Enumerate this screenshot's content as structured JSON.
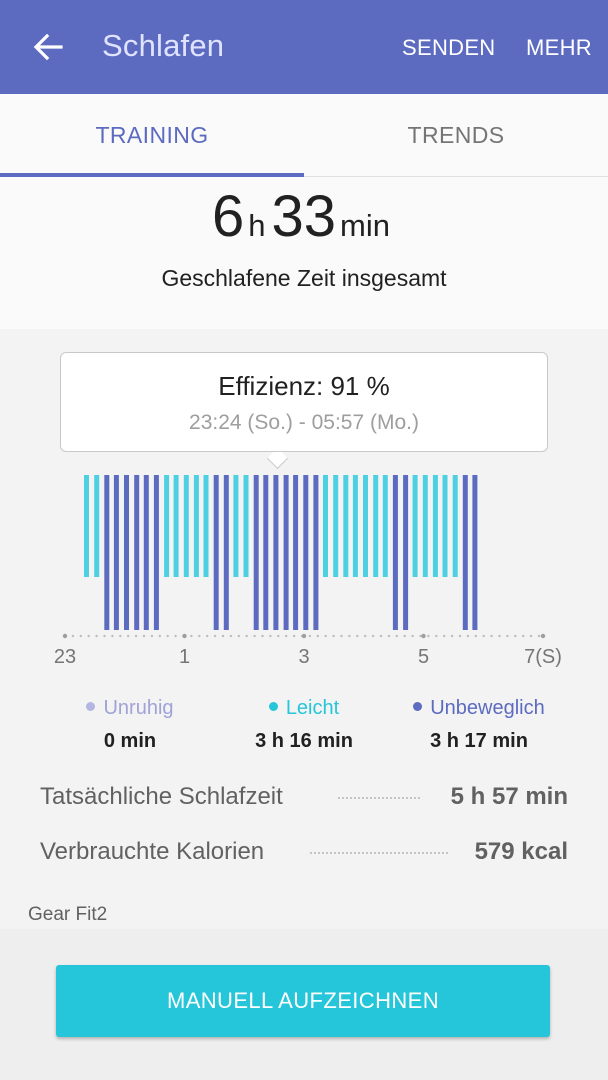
{
  "appbar": {
    "title": "Schlafen",
    "back_icon": "arrow-left-icon",
    "actions": [
      "SENDEN",
      "MEHR"
    ]
  },
  "tabs": [
    {
      "label": "TRAINING",
      "selected": true
    },
    {
      "label": "TRENDS",
      "selected": false
    }
  ],
  "total": {
    "hours": "6",
    "hours_unit": "h",
    "minutes": "33",
    "minutes_unit": "min",
    "caption": "Geschlafene Zeit insgesamt"
  },
  "tooltip": {
    "title": "Effizienz: 91 %",
    "range": "23:24 (So.) - 05:57 (Mo.)"
  },
  "chart_data": {
    "type": "bar",
    "x_ticks": [
      "23",
      "1",
      "3",
      "5",
      "7(S)"
    ],
    "x_tick_hours": [
      23,
      25,
      27,
      29,
      31
    ],
    "state_levels": {
      "Leicht": 1,
      "Unbeweglich": 2
    },
    "samples": [
      {
        "x": 23.36,
        "state": "Leicht"
      },
      {
        "x": 23.53,
        "state": "Leicht"
      },
      {
        "x": 23.7,
        "state": "Unbeweglich"
      },
      {
        "x": 23.86,
        "state": "Unbeweglich"
      },
      {
        "x": 24.03,
        "state": "Unbeweglich"
      },
      {
        "x": 24.2,
        "state": "Unbeweglich"
      },
      {
        "x": 24.36,
        "state": "Unbeweglich"
      },
      {
        "x": 24.53,
        "state": "Unbeweglich"
      },
      {
        "x": 24.7,
        "state": "Leicht"
      },
      {
        "x": 24.86,
        "state": "Leicht"
      },
      {
        "x": 25.03,
        "state": "Leicht"
      },
      {
        "x": 25.2,
        "state": "Leicht"
      },
      {
        "x": 25.36,
        "state": "Leicht"
      },
      {
        "x": 25.53,
        "state": "Unbeweglich"
      },
      {
        "x": 25.7,
        "state": "Unbeweglich"
      },
      {
        "x": 25.86,
        "state": "Leicht"
      },
      {
        "x": 26.03,
        "state": "Leicht"
      },
      {
        "x": 26.2,
        "state": "Unbeweglich"
      },
      {
        "x": 26.36,
        "state": "Unbeweglich"
      },
      {
        "x": 26.53,
        "state": "Unbeweglich"
      },
      {
        "x": 26.7,
        "state": "Unbeweglich"
      },
      {
        "x": 26.86,
        "state": "Unbeweglich"
      },
      {
        "x": 27.03,
        "state": "Unbeweglich"
      },
      {
        "x": 27.2,
        "state": "Unbeweglich"
      },
      {
        "x": 27.36,
        "state": "Leicht"
      },
      {
        "x": 27.53,
        "state": "Leicht"
      },
      {
        "x": 27.7,
        "state": "Leicht"
      },
      {
        "x": 27.86,
        "state": "Leicht"
      },
      {
        "x": 28.03,
        "state": "Leicht"
      },
      {
        "x": 28.2,
        "state": "Leicht"
      },
      {
        "x": 28.36,
        "state": "Leicht"
      },
      {
        "x": 28.53,
        "state": "Unbeweglich"
      },
      {
        "x": 28.7,
        "state": "Unbeweglich"
      },
      {
        "x": 28.86,
        "state": "Leicht"
      },
      {
        "x": 29.03,
        "state": "Leicht"
      },
      {
        "x": 29.2,
        "state": "Leicht"
      },
      {
        "x": 29.36,
        "state": "Leicht"
      },
      {
        "x": 29.53,
        "state": "Leicht"
      },
      {
        "x": 29.7,
        "state": "Unbeweglich"
      },
      {
        "x": 29.86,
        "state": "Unbeweglich"
      }
    ],
    "colors": {
      "Leicht": "#4dd0e1",
      "Unbeweglich": "#5c6bc0"
    }
  },
  "legend": [
    {
      "label": "Unruhig",
      "value": "0 min",
      "color": "#b3b6e0",
      "label_color": "#9fa3d6"
    },
    {
      "label": "Leicht",
      "value": "3 h 16 min",
      "color": "#26c6da",
      "label_color": "#26c6da"
    },
    {
      "label": "Unbeweglich",
      "value": "3 h 17 min",
      "color": "#5c6bc0",
      "label_color": "#5c6bc0"
    }
  ],
  "stats": [
    {
      "label": "Tatsächliche Schlafzeit",
      "value": "5 h 57 min"
    },
    {
      "label": "Verbrauchte Kalorien",
      "value": "579 kcal"
    }
  ],
  "device": "Gear Fit2",
  "record_button": "MANUELL AUFZEICHNEN"
}
